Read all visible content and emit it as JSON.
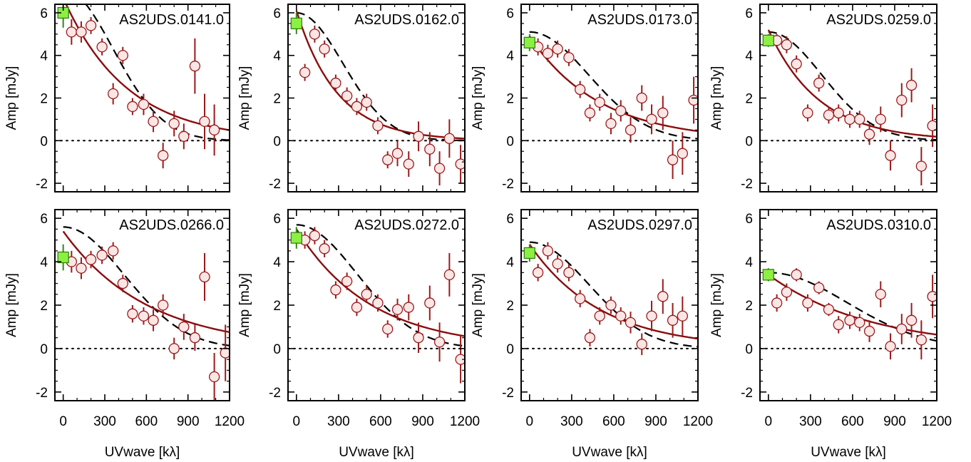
{
  "figure": {
    "xlabel": "UVwave [kλ]",
    "ylabel": "Amp [mJy]"
  },
  "colors": {
    "data_fill": "#fbe6e6",
    "data_edge": "#9b1a1a",
    "model_line": "#8b0d0d",
    "dashed_line": "#000000",
    "single_dish_fill": "#8cf043",
    "single_dish_edge": "#2f7a0e"
  },
  "chart_data": [
    {
      "type": "scatter",
      "title": "AS2UDS.0141.0",
      "xlim": [
        -60,
        1200
      ],
      "ylim": [
        -2.4,
        6.4
      ],
      "xticks": [
        0,
        300,
        600,
        900,
        1200
      ],
      "yticks": [
        -2,
        0,
        2,
        4,
        6
      ],
      "zero_line": 0,
      "single_dish": {
        "x": 0,
        "y": 6.0,
        "err": 0.7
      },
      "points": [
        {
          "x": 60,
          "y": 5.1,
          "err": 0.6
        },
        {
          "x": 130,
          "y": 5.1,
          "err": 0.5
        },
        {
          "x": 200,
          "y": 5.4,
          "err": 0.4
        },
        {
          "x": 280,
          "y": 4.4,
          "err": 0.4
        },
        {
          "x": 360,
          "y": 2.2,
          "err": 0.5
        },
        {
          "x": 430,
          "y": 4.0,
          "err": 0.4
        },
        {
          "x": 500,
          "y": 1.6,
          "err": 0.4
        },
        {
          "x": 580,
          "y": 1.7,
          "err": 0.5
        },
        {
          "x": 650,
          "y": 0.9,
          "err": 0.5
        },
        {
          "x": 720,
          "y": -0.7,
          "err": 0.6
        },
        {
          "x": 800,
          "y": 0.8,
          "err": 0.6
        },
        {
          "x": 870,
          "y": 0.2,
          "err": 0.6
        },
        {
          "x": 950,
          "y": 3.5,
          "err": 1.3
        },
        {
          "x": 1020,
          "y": 0.9,
          "err": 1.3
        },
        {
          "x": 1090,
          "y": 0.5,
          "err": 1.2
        }
      ],
      "model": {
        "a": 6.7,
        "scale": 460
      },
      "dashed": {
        "a": 7.1,
        "width": 360
      }
    },
    {
      "type": "scatter",
      "title": "AS2UDS.0162.0",
      "xlim": [
        -60,
        1200
      ],
      "ylim": [
        -2.4,
        6.4
      ],
      "xticks": [
        0,
        300,
        600,
        900,
        1200
      ],
      "yticks": [
        -2,
        0,
        2,
        4,
        6
      ],
      "zero_line": 0,
      "single_dish": {
        "x": 0,
        "y": 5.5,
        "err": 0.5
      },
      "points": [
        {
          "x": 60,
          "y": 3.2,
          "err": 0.4
        },
        {
          "x": 130,
          "y": 5.0,
          "err": 0.4
        },
        {
          "x": 200,
          "y": 4.3,
          "err": 0.4
        },
        {
          "x": 280,
          "y": 2.7,
          "err": 0.4
        },
        {
          "x": 360,
          "y": 2.1,
          "err": 0.4
        },
        {
          "x": 430,
          "y": 1.6,
          "err": 0.4
        },
        {
          "x": 500,
          "y": 1.8,
          "err": 0.4
        },
        {
          "x": 580,
          "y": 0.7,
          "err": 0.4
        },
        {
          "x": 650,
          "y": -0.9,
          "err": 0.4
        },
        {
          "x": 720,
          "y": -0.6,
          "err": 0.6
        },
        {
          "x": 800,
          "y": -1.1,
          "err": 0.6
        },
        {
          "x": 870,
          "y": 0.2,
          "err": 0.7
        },
        {
          "x": 950,
          "y": -0.4,
          "err": 0.8
        },
        {
          "x": 1020,
          "y": -1.3,
          "err": 0.8
        },
        {
          "x": 1090,
          "y": 0.1,
          "err": 0.9
        },
        {
          "x": 1170,
          "y": -1.1,
          "err": 0.9
        }
      ],
      "model": {
        "a": 6.1,
        "scale": 290
      },
      "dashed": {
        "a": 6.0,
        "width": 330
      }
    },
    {
      "type": "scatter",
      "title": "AS2UDS.0173.0",
      "xlim": [
        -60,
        1200
      ],
      "ylim": [
        -2.4,
        6.4
      ],
      "xticks": [
        0,
        300,
        600,
        900,
        1200
      ],
      "yticks": [
        -2,
        0,
        2,
        4,
        6
      ],
      "zero_line": 0,
      "single_dish": {
        "x": 0,
        "y": 4.6,
        "err": 0.4
      },
      "points": [
        {
          "x": 60,
          "y": 4.4,
          "err": 0.4
        },
        {
          "x": 130,
          "y": 4.1,
          "err": 0.4
        },
        {
          "x": 200,
          "y": 4.3,
          "err": 0.4
        },
        {
          "x": 280,
          "y": 3.9,
          "err": 0.4
        },
        {
          "x": 360,
          "y": 2.4,
          "err": 0.4
        },
        {
          "x": 430,
          "y": 1.3,
          "err": 0.4
        },
        {
          "x": 500,
          "y": 1.8,
          "err": 0.4
        },
        {
          "x": 580,
          "y": 0.8,
          "err": 0.5
        },
        {
          "x": 650,
          "y": 1.4,
          "err": 0.5
        },
        {
          "x": 720,
          "y": 0.5,
          "err": 0.6
        },
        {
          "x": 800,
          "y": 2.0,
          "err": 0.6
        },
        {
          "x": 870,
          "y": 1.0,
          "err": 0.7
        },
        {
          "x": 950,
          "y": 1.3,
          "err": 0.8
        },
        {
          "x": 1020,
          "y": -0.9,
          "err": 0.9
        },
        {
          "x": 1090,
          "y": -0.6,
          "err": 1.0
        },
        {
          "x": 1170,
          "y": 1.9,
          "err": 1.1
        }
      ],
      "model": {
        "a": 4.9,
        "scale": 500
      },
      "dashed": {
        "a": 5.1,
        "width": 420
      }
    },
    {
      "type": "scatter",
      "title": "AS2UDS.0259.0",
      "xlim": [
        -60,
        1200
      ],
      "ylim": [
        -2.4,
        6.4
      ],
      "xticks": [
        0,
        300,
        600,
        900,
        1200
      ],
      "yticks": [
        -2,
        0,
        2,
        4,
        6
      ],
      "zero_line": 0,
      "single_dish": {
        "x": 0,
        "y": 4.7,
        "err": 0.3
      },
      "points": [
        {
          "x": 60,
          "y": 4.7,
          "err": 0.3
        },
        {
          "x": 130,
          "y": 4.5,
          "err": 0.4
        },
        {
          "x": 200,
          "y": 3.6,
          "err": 0.4
        },
        {
          "x": 280,
          "y": 1.3,
          "err": 0.4
        },
        {
          "x": 360,
          "y": 2.7,
          "err": 0.4
        },
        {
          "x": 430,
          "y": 1.2,
          "err": 0.4
        },
        {
          "x": 500,
          "y": 1.3,
          "err": 0.4
        },
        {
          "x": 580,
          "y": 1.0,
          "err": 0.4
        },
        {
          "x": 650,
          "y": 1.0,
          "err": 0.4
        },
        {
          "x": 720,
          "y": 0.3,
          "err": 0.5
        },
        {
          "x": 800,
          "y": 1.0,
          "err": 0.6
        },
        {
          "x": 870,
          "y": -0.7,
          "err": 0.7
        },
        {
          "x": 950,
          "y": 1.9,
          "err": 0.8
        },
        {
          "x": 1020,
          "y": 2.6,
          "err": 0.8
        },
        {
          "x": 1090,
          "y": -1.2,
          "err": 0.9
        },
        {
          "x": 1170,
          "y": 0.7,
          "err": 1.0
        }
      ],
      "model": {
        "a": 5.2,
        "scale": 360
      },
      "dashed": {
        "a": 5.1,
        "width": 380
      }
    },
    {
      "type": "scatter",
      "title": "AS2UDS.0266.0",
      "xlim": [
        -60,
        1200
      ],
      "ylim": [
        -2.4,
        6.4
      ],
      "xticks": [
        0,
        300,
        600,
        900,
        1200
      ],
      "yticks": [
        -2,
        0,
        2,
        4,
        6
      ],
      "zero_line": 0,
      "single_dish": {
        "x": 0,
        "y": 4.2,
        "err": 0.6
      },
      "points": [
        {
          "x": 60,
          "y": 4.0,
          "err": 0.5
        },
        {
          "x": 130,
          "y": 3.7,
          "err": 0.5
        },
        {
          "x": 200,
          "y": 4.1,
          "err": 0.4
        },
        {
          "x": 280,
          "y": 4.3,
          "err": 0.4
        },
        {
          "x": 360,
          "y": 4.5,
          "err": 0.4
        },
        {
          "x": 430,
          "y": 3.0,
          "err": 0.4
        },
        {
          "x": 500,
          "y": 1.6,
          "err": 0.4
        },
        {
          "x": 580,
          "y": 1.5,
          "err": 0.4
        },
        {
          "x": 650,
          "y": 1.3,
          "err": 0.5
        },
        {
          "x": 720,
          "y": 2.0,
          "err": 0.5
        },
        {
          "x": 800,
          "y": 0.0,
          "err": 0.5
        },
        {
          "x": 870,
          "y": 1.0,
          "err": 0.6
        },
        {
          "x": 950,
          "y": 0.5,
          "err": 0.6
        },
        {
          "x": 1020,
          "y": 3.3,
          "err": 1.1
        },
        {
          "x": 1090,
          "y": -1.3,
          "err": 1.1
        },
        {
          "x": 1170,
          "y": -0.2,
          "err": 1.3
        }
      ],
      "model": {
        "a": 5.4,
        "scale": 610
      },
      "dashed": {
        "a": 5.6,
        "width": 440
      }
    },
    {
      "type": "scatter",
      "title": "AS2UDS.0272.0",
      "xlim": [
        -60,
        1200
      ],
      "ylim": [
        -2.4,
        6.4
      ],
      "xticks": [
        0,
        300,
        600,
        900,
        1200
      ],
      "yticks": [
        -2,
        0,
        2,
        4,
        6
      ],
      "zero_line": 0,
      "single_dish": {
        "x": 0,
        "y": 5.1,
        "err": 0.5
      },
      "points": [
        {
          "x": 60,
          "y": 5.0,
          "err": 0.4
        },
        {
          "x": 130,
          "y": 5.2,
          "err": 0.4
        },
        {
          "x": 200,
          "y": 4.6,
          "err": 0.4
        },
        {
          "x": 280,
          "y": 2.7,
          "err": 0.4
        },
        {
          "x": 360,
          "y": 3.1,
          "err": 0.4
        },
        {
          "x": 430,
          "y": 1.9,
          "err": 0.4
        },
        {
          "x": 500,
          "y": 2.5,
          "err": 0.4
        },
        {
          "x": 580,
          "y": 2.1,
          "err": 0.4
        },
        {
          "x": 650,
          "y": 0.9,
          "err": 0.4
        },
        {
          "x": 720,
          "y": 1.8,
          "err": 0.5
        },
        {
          "x": 800,
          "y": 1.9,
          "err": 0.6
        },
        {
          "x": 870,
          "y": 0.5,
          "err": 0.7
        },
        {
          "x": 950,
          "y": 2.1,
          "err": 0.8
        },
        {
          "x": 1020,
          "y": 0.3,
          "err": 0.9
        },
        {
          "x": 1090,
          "y": 3.4,
          "err": 1.0
        },
        {
          "x": 1170,
          "y": -0.5,
          "err": 1.1
        }
      ],
      "model": {
        "a": 5.5,
        "scale": 530
      },
      "dashed": {
        "a": 5.7,
        "width": 430
      }
    },
    {
      "type": "scatter",
      "title": "AS2UDS.0297.0",
      "xlim": [
        -60,
        1200
      ],
      "ylim": [
        -2.4,
        6.4
      ],
      "xticks": [
        0,
        300,
        600,
        900,
        1200
      ],
      "yticks": [
        -2,
        0,
        2,
        4,
        6
      ],
      "zero_line": 0,
      "single_dish": {
        "x": 0,
        "y": 4.4,
        "err": 0.4
      },
      "points": [
        {
          "x": 60,
          "y": 3.5,
          "err": 0.4
        },
        {
          "x": 130,
          "y": 4.5,
          "err": 0.4
        },
        {
          "x": 200,
          "y": 3.9,
          "err": 0.4
        },
        {
          "x": 280,
          "y": 3.5,
          "err": 0.4
        },
        {
          "x": 360,
          "y": 2.3,
          "err": 0.4
        },
        {
          "x": 430,
          "y": 0.5,
          "err": 0.4
        },
        {
          "x": 500,
          "y": 1.5,
          "err": 0.4
        },
        {
          "x": 580,
          "y": 2.0,
          "err": 0.4
        },
        {
          "x": 650,
          "y": 1.5,
          "err": 0.4
        },
        {
          "x": 720,
          "y": 1.2,
          "err": 0.5
        },
        {
          "x": 800,
          "y": 0.2,
          "err": 0.5
        },
        {
          "x": 870,
          "y": 1.5,
          "err": 0.7
        },
        {
          "x": 950,
          "y": 2.4,
          "err": 0.8
        },
        {
          "x": 1020,
          "y": 1.3,
          "err": 0.8
        },
        {
          "x": 1090,
          "y": 1.5,
          "err": 0.9
        }
      ],
      "model": {
        "a": 4.8,
        "scale": 510
      },
      "dashed": {
        "a": 4.9,
        "width": 420
      }
    },
    {
      "type": "scatter",
      "title": "AS2UDS.0310.0",
      "xlim": [
        -60,
        1200
      ],
      "ylim": [
        -2.4,
        6.4
      ],
      "xticks": [
        0,
        300,
        600,
        900,
        1200
      ],
      "yticks": [
        -2,
        0,
        2,
        4,
        6
      ],
      "zero_line": 0,
      "single_dish": {
        "x": 0,
        "y": 3.4,
        "err": 0.3
      },
      "points": [
        {
          "x": 60,
          "y": 2.1,
          "err": 0.4
        },
        {
          "x": 130,
          "y": 2.6,
          "err": 0.4
        },
        {
          "x": 200,
          "y": 3.4,
          "err": 0.3
        },
        {
          "x": 280,
          "y": 2.1,
          "err": 0.4
        },
        {
          "x": 360,
          "y": 2.8,
          "err": 0.3
        },
        {
          "x": 430,
          "y": 1.8,
          "err": 0.3
        },
        {
          "x": 500,
          "y": 1.1,
          "err": 0.4
        },
        {
          "x": 580,
          "y": 1.3,
          "err": 0.4
        },
        {
          "x": 650,
          "y": 1.2,
          "err": 0.4
        },
        {
          "x": 720,
          "y": 0.8,
          "err": 0.5
        },
        {
          "x": 800,
          "y": 2.5,
          "err": 0.6
        },
        {
          "x": 870,
          "y": 0.1,
          "err": 0.6
        },
        {
          "x": 950,
          "y": 0.9,
          "err": 0.7
        },
        {
          "x": 1020,
          "y": 1.3,
          "err": 0.8
        },
        {
          "x": 1090,
          "y": 0.4,
          "err": 0.9
        },
        {
          "x": 1170,
          "y": 2.4,
          "err": 1.0
        }
      ],
      "model": {
        "a": 3.4,
        "scale": 720
      },
      "dashed": {
        "a": 3.5,
        "width": 560
      }
    }
  ]
}
